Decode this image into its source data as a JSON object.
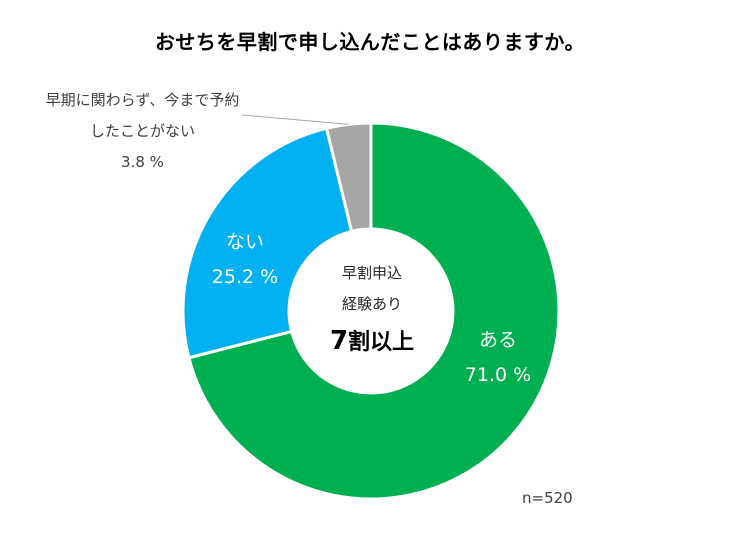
{
  "title": "おせちを早割で申し込んだことはありますか。",
  "chart_data": {
    "type": "pie",
    "style": "donut",
    "title": "おせちを早割で申し込んだことはありますか。",
    "slices": [
      {
        "name": "ある",
        "value": 71.0,
        "value_label": "71.0 %",
        "color": "#00b050"
      },
      {
        "name": "ない",
        "value": 25.2,
        "value_label": "25.2 %",
        "color": "#00b0f0"
      },
      {
        "name_line1": "早期に関わらず、今まで予約",
        "name_line2": "したことがない",
        "name": "早期に関わらず、今まで予約したことがない",
        "value": 3.8,
        "value_label": "3.8 %",
        "color": "#a6a6a6"
      }
    ],
    "center_text": {
      "line1": "早割申込",
      "line2": "経験あり",
      "highlight_number": "7",
      "highlight_suffix": "割以上"
    },
    "sample_size": "n=520"
  }
}
